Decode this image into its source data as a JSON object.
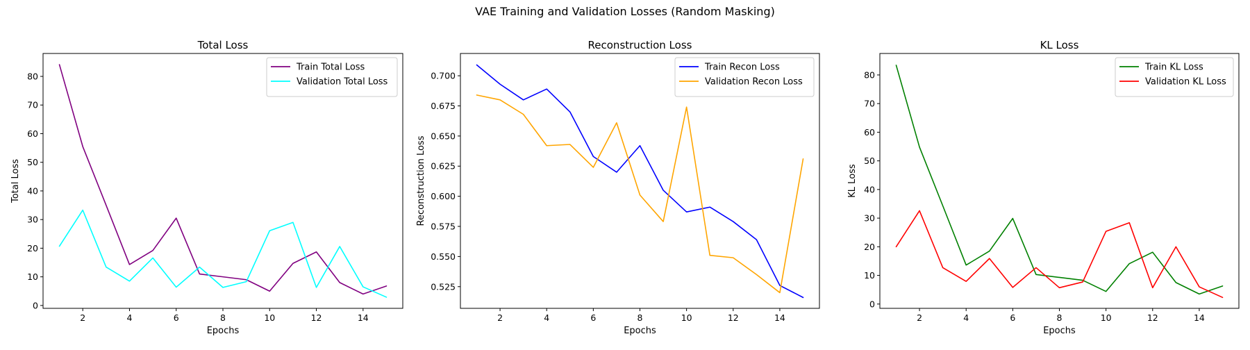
{
  "figure": {
    "suptitle": "VAE Training and Validation Losses (Random Masking)"
  },
  "chart_data": [
    {
      "type": "line",
      "title": "Total Loss",
      "xlabel": "Epochs",
      "ylabel": "Total Loss",
      "xlim": [
        0.3,
        15.7
      ],
      "ylim": [
        -1,
        88
      ],
      "xticks": [
        2,
        4,
        6,
        8,
        10,
        12,
        14
      ],
      "yticks": [
        0,
        10,
        20,
        30,
        40,
        50,
        60,
        70,
        80
      ],
      "ytick_format": 0,
      "legend": "top-right",
      "grid": false,
      "x": [
        1,
        2,
        3,
        4,
        5,
        6,
        7,
        8,
        9,
        10,
        11,
        12,
        13,
        14,
        15
      ],
      "series": [
        {
          "name": "Train Total Loss",
          "color": "#800080",
          "values": [
            84.1,
            55.5,
            35.0,
            14.3,
            19.2,
            30.5,
            11.0,
            10.0,
            9.0,
            5.0,
            14.7,
            18.7,
            8.0,
            4.0,
            6.8
          ]
        },
        {
          "name": "Validation Total Loss",
          "color": "#00FFFF",
          "values": [
            20.7,
            33.3,
            13.4,
            8.5,
            16.6,
            6.4,
            13.4,
            6.3,
            8.3,
            26.1,
            29.0,
            6.3,
            20.6,
            6.5,
            2.9
          ]
        }
      ]
    },
    {
      "type": "line",
      "title": "Reconstruction Loss",
      "xlabel": "Epochs",
      "ylabel": "Reconstruction Loss",
      "xlim": [
        0.3,
        15.7
      ],
      "ylim": [
        0.507,
        0.7185
      ],
      "xticks": [
        2,
        4,
        6,
        8,
        10,
        12,
        14
      ],
      "yticks": [
        0.525,
        0.55,
        0.575,
        0.6,
        0.625,
        0.65,
        0.675,
        0.7
      ],
      "ytick_format": 3,
      "legend": "top-right",
      "grid": false,
      "x": [
        1,
        2,
        3,
        4,
        5,
        6,
        7,
        8,
        9,
        10,
        11,
        12,
        13,
        14,
        15
      ],
      "series": [
        {
          "name": "Train Recon Loss",
          "color": "#0000FF",
          "values": [
            0.709,
            0.693,
            0.68,
            0.689,
            0.67,
            0.633,
            0.62,
            0.642,
            0.605,
            0.587,
            0.591,
            0.579,
            0.564,
            0.526,
            0.516
          ]
        },
        {
          "name": "Validation Recon Loss",
          "color": "#FFA500",
          "values": [
            0.684,
            0.68,
            0.668,
            0.642,
            0.643,
            0.624,
            0.661,
            0.601,
            0.579,
            0.674,
            0.551,
            0.549,
            0.535,
            0.52,
            0.631
          ]
        }
      ]
    },
    {
      "type": "line",
      "title": "KL Loss",
      "xlabel": "Epochs",
      "ylabel": "KL Loss",
      "xlim": [
        0.3,
        15.7
      ],
      "ylim": [
        -1.5,
        87.5
      ],
      "xticks": [
        2,
        4,
        6,
        8,
        10,
        12,
        14
      ],
      "yticks": [
        0,
        10,
        20,
        30,
        40,
        50,
        60,
        70,
        80
      ],
      "ytick_format": 0,
      "legend": "top-right",
      "grid": false,
      "x": [
        1,
        2,
        3,
        4,
        5,
        6,
        7,
        8,
        9,
        10,
        11,
        12,
        13,
        14,
        15
      ],
      "series": [
        {
          "name": "Train KL Loss",
          "color": "#008000",
          "values": [
            83.4,
            54.8,
            34.3,
            13.6,
            18.5,
            29.9,
            10.3,
            9.3,
            8.3,
            4.4,
            14.1,
            18.1,
            7.5,
            3.5,
            6.3
          ]
        },
        {
          "name": "Validation KL Loss",
          "color": "#FF0000",
          "values": [
            20.0,
            32.6,
            12.7,
            7.9,
            15.9,
            5.8,
            12.7,
            5.7,
            7.7,
            25.4,
            28.4,
            5.7,
            20.0,
            6.0,
            2.3
          ]
        }
      ]
    }
  ]
}
